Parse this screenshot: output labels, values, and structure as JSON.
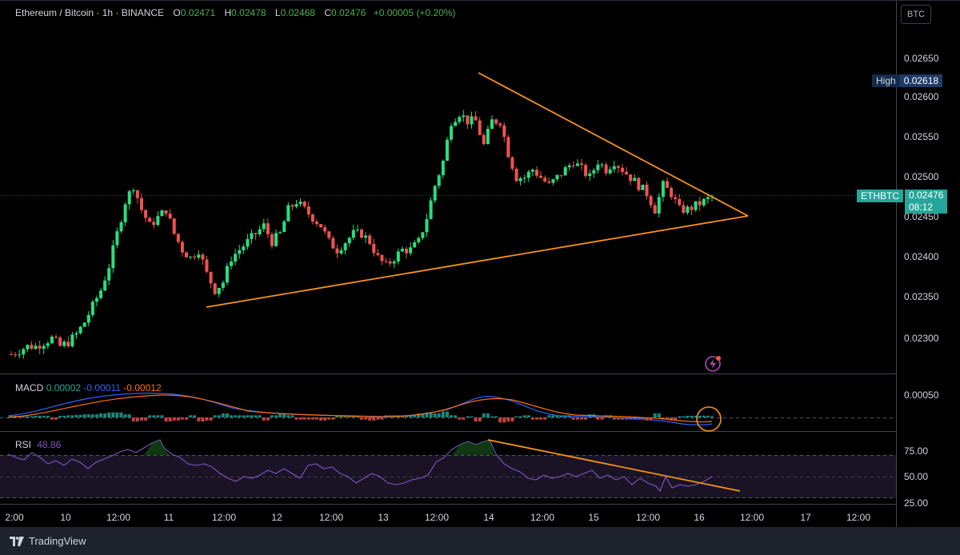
{
  "header": {
    "title": "Ethereum / Bitcoin · 1h · BINANCE",
    "o_label": "O",
    "o_value": "0.02471",
    "h_label": "H",
    "h_value": "0.02478",
    "l_label": "L",
    "l_value": "0.02468",
    "c_label": "C",
    "c_value": "0.02476",
    "change": "+0.00005 (+0.20%)"
  },
  "scale_button": "BTC",
  "price_axis": {
    "ticks": [
      "0.02650",
      "0.02600",
      "0.02550",
      "0.02500",
      "0.02450",
      "0.02400",
      "0.02350",
      "0.02300"
    ],
    "high_label": "High",
    "high_value": "0.02618",
    "symbol_label": "ETHBTC",
    "last_value": "0.02476",
    "countdown": "08:12"
  },
  "macd": {
    "label": "MACD",
    "v1": "0.00002",
    "v2": "-0.00011",
    "v3": "-0.00012",
    "axis_tick": "0.00050"
  },
  "rsi": {
    "label": "RSI",
    "value": "48.86",
    "axis_ticks": [
      "75.00",
      "50.00",
      "25.00"
    ]
  },
  "time_axis": [
    "2:00",
    "10",
    "12:00",
    "11",
    "12:00",
    "12",
    "12:00",
    "13",
    "12:00",
    "14",
    "12:00",
    "15",
    "12:00",
    "16",
    "12:00",
    "17",
    "12:00"
  ],
  "footer": {
    "brand": "TradingView"
  },
  "colors": {
    "up": "#26a69a",
    "up_green": "#4caf50",
    "down": "#ef5350",
    "trendline": "#f7931a",
    "macd": "#2962ff",
    "signal": "#ff6d00",
    "rsi": "#7e57c2"
  },
  "chart_data": {
    "type": "candlestick",
    "title": "Ethereum / Bitcoin · 1h · BINANCE",
    "ylim": [
      0.0227,
      0.0268
    ],
    "close_path": [
      0.0228,
      0.02285,
      0.0229,
      0.0229,
      0.02295,
      0.023,
      0.0229,
      0.02295,
      0.02305,
      0.0232,
      0.0234,
      0.0236,
      0.0239,
      0.0243,
      0.0247,
      0.0249,
      0.0246,
      0.0244,
      0.0245,
      0.0246,
      0.0243,
      0.0241,
      0.024,
      0.0241,
      0.0238,
      0.0236,
      0.0237,
      0.024,
      0.0241,
      0.0242,
      0.0243,
      0.0244,
      0.0242,
      0.0243,
      0.0246,
      0.0247,
      0.0246,
      0.0245,
      0.0244,
      0.0242,
      0.0241,
      0.0242,
      0.0243,
      0.0243,
      0.0242,
      0.024,
      0.0239,
      0.024,
      0.0241,
      0.0241,
      0.0242,
      0.0245,
      0.0249,
      0.0252,
      0.0257,
      0.0258,
      0.0257,
      0.0257,
      0.0254,
      0.0257,
      0.0257,
      0.0253,
      0.025,
      0.025,
      0.0251,
      0.025,
      0.0249,
      0.025,
      0.0251,
      0.0252,
      0.0251,
      0.025,
      0.0252,
      0.0251,
      0.0252,
      0.0251,
      0.025,
      0.0249,
      0.0248,
      0.0246,
      0.0249,
      0.0248,
      0.0246,
      0.0246,
      0.02465,
      0.0247,
      0.02476
    ],
    "trendlines": [
      {
        "from": [
          "12:00 (11)",
          0.02342
        ],
        "to": [
          "16 12:00",
          0.02453
        ]
      },
      {
        "from": [
          "14",
          0.02618
        ],
        "to": [
          "16 12:00",
          0.02453
        ]
      }
    ],
    "high": 0.02618,
    "last": 0.02476,
    "rsi_levels": [
      75,
      50,
      25
    ],
    "x_ticks": [
      "2:00",
      "10",
      "12:00",
      "11",
      "12:00",
      "12",
      "12:00",
      "13",
      "12:00",
      "14",
      "12:00",
      "15",
      "12:00",
      "16",
      "12:00",
      "17",
      "12:00"
    ]
  }
}
